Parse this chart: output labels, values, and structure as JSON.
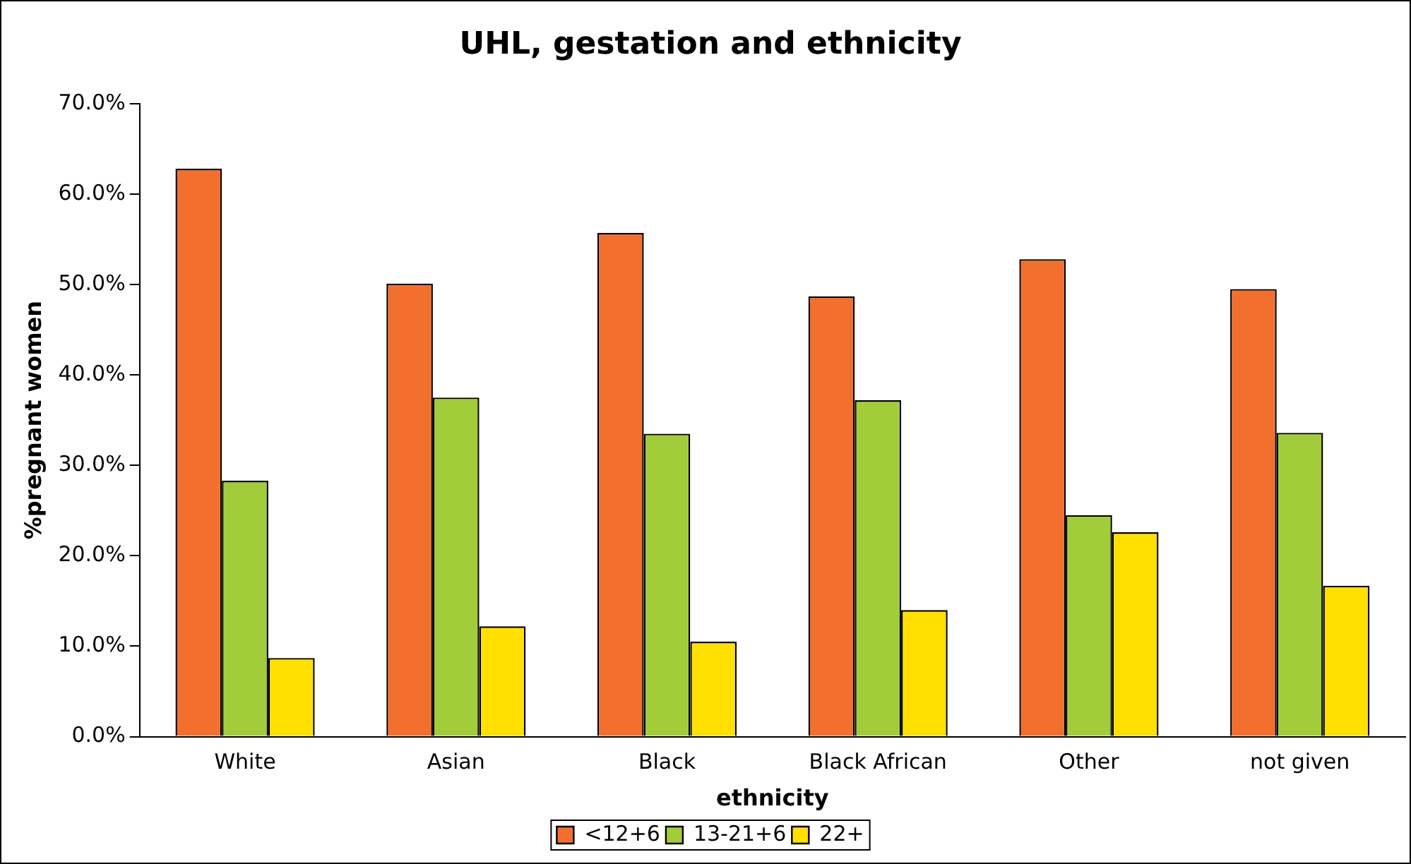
{
  "chart_data": {
    "type": "bar",
    "title": "UHL, gestation and ethnicity",
    "xlabel": "ethnicity",
    "ylabel": "%pregnant women",
    "categories": [
      "White",
      "Asian",
      "Black",
      "Black African",
      "Other",
      "not given"
    ],
    "series": [
      {
        "name": "<12+6",
        "color": "#f26f2e",
        "values": [
          62.8,
          50.1,
          55.7,
          48.7,
          52.8,
          49.5
        ]
      },
      {
        "name": "13-21+6",
        "color": "#a3cc3a",
        "values": [
          28.3,
          37.5,
          33.5,
          37.2,
          24.5,
          33.6
        ]
      },
      {
        "name": "22+",
        "color": "#ffe000",
        "values": [
          8.7,
          12.2,
          10.5,
          14.0,
          22.6,
          16.7
        ]
      }
    ],
    "ylim": [
      0,
      70
    ],
    "yticks": [
      {
        "value": 0,
        "label": "0.0%"
      },
      {
        "value": 10,
        "label": "10.0%"
      },
      {
        "value": 20,
        "label": "20.0%"
      },
      {
        "value": 30,
        "label": "30.0%"
      },
      {
        "value": 40,
        "label": "40.0%"
      },
      {
        "value": 50,
        "label": "50.0%"
      },
      {
        "value": 60,
        "label": "60.0%"
      },
      {
        "value": 70,
        "label": "70.0%"
      }
    ],
    "grid": false,
    "legend": "bottom"
  }
}
